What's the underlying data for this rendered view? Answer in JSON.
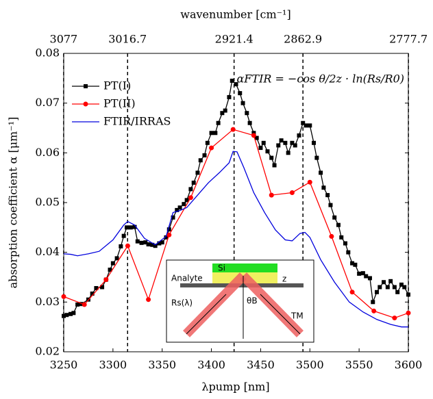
{
  "chart_data": {
    "type": "line",
    "x2_label": "wavenumber [cm⁻¹]",
    "ylabel": "absorption coefficient α [μm⁻¹]",
    "xlabel": "λpump [nm]",
    "annotation": "αFTIR = −cos θ/2z · ln(Rs/R0)",
    "inset_labels": [
      "Si",
      "Analyte",
      "z",
      "Rs(λ)",
      "θB",
      "TM"
    ],
    "xlim": [
      3250,
      3600
    ],
    "xticks": [
      3250,
      3300,
      3350,
      3400,
      3450,
      3500,
      3550,
      3600
    ],
    "ylim": [
      0.02,
      0.08
    ],
    "yticks": [
      0.02,
      0.03,
      0.04,
      0.05,
      0.06,
      0.07,
      0.08
    ],
    "x2ticks": [
      3077,
      3016.7,
      2921.4,
      2862.9,
      2777.7
    ],
    "legend": "upper left",
    "series": [
      {
        "name": "PT(I)",
        "color": "#000000",
        "marker": "square",
        "x": [
          3250,
          3253,
          3257,
          3260,
          3264,
          3268,
          3275,
          3279,
          3283,
          3289,
          3293,
          3297,
          3300,
          3304,
          3308,
          3311,
          3314,
          3318,
          3322,
          3325,
          3329,
          3333,
          3336,
          3340,
          3343,
          3347,
          3350,
          3354,
          3357,
          3361,
          3365,
          3368,
          3372,
          3375,
          3379,
          3382,
          3386,
          3389,
          3393,
          3396,
          3400,
          3404,
          3407,
          3411,
          3414,
          3418,
          3421,
          3425,
          3429,
          3432,
          3436,
          3439,
          3443,
          3446,
          3450,
          3453,
          3457,
          3461,
          3464,
          3468,
          3471,
          3475,
          3478,
          3482,
          3485,
          3489,
          3493,
          3496,
          3500,
          3504,
          3507,
          3511,
          3514,
          3518,
          3521,
          3525,
          3529,
          3532,
          3536,
          3539,
          3543,
          3546,
          3550,
          3554,
          3557,
          3561,
          3564,
          3568,
          3571,
          3575,
          3579,
          3582,
          3586,
          3589,
          3593,
          3596,
          3600
        ],
        "values": [
          0.0272,
          0.0274,
          0.0276,
          0.0278,
          0.0295,
          0.0296,
          0.0305,
          0.0317,
          0.0328,
          0.033,
          0.0345,
          0.0365,
          0.0378,
          0.0388,
          0.0412,
          0.0433,
          0.045,
          0.045,
          0.0451,
          0.0422,
          0.0419,
          0.042,
          0.0416,
          0.0415,
          0.0413,
          0.0418,
          0.042,
          0.043,
          0.0446,
          0.047,
          0.0485,
          0.049,
          0.0497,
          0.0505,
          0.0527,
          0.054,
          0.056,
          0.0585,
          0.0595,
          0.062,
          0.064,
          0.064,
          0.066,
          0.068,
          0.0685,
          0.0712,
          0.0745,
          0.0738,
          0.072,
          0.07,
          0.068,
          0.066,
          0.064,
          0.063,
          0.061,
          0.062,
          0.0603,
          0.059,
          0.0575,
          0.0615,
          0.0625,
          0.062,
          0.06,
          0.062,
          0.0615,
          0.0635,
          0.066,
          0.0655,
          0.0655,
          0.062,
          0.059,
          0.056,
          0.053,
          0.0515,
          0.0495,
          0.047,
          0.0455,
          0.043,
          0.0418,
          0.04,
          0.0378,
          0.0375,
          0.0357,
          0.0358,
          0.0352,
          0.0348,
          0.03,
          0.032,
          0.033,
          0.034,
          0.033,
          0.0342,
          0.033,
          0.032,
          0.0335,
          0.033,
          0.0315
        ]
      },
      {
        "name": "PT(II)",
        "color": "#ff0000",
        "marker": "circle",
        "x": [
          3250,
          3271,
          3293,
          3315,
          3336,
          3357,
          3379,
          3400,
          3422,
          3443,
          3461,
          3482,
          3500,
          3522,
          3543,
          3565,
          3586,
          3600
        ],
        "values": [
          0.0311,
          0.0295,
          0.0345,
          0.0413,
          0.0305,
          0.0435,
          0.051,
          0.061,
          0.0647,
          0.0635,
          0.0515,
          0.052,
          0.0541,
          0.0432,
          0.032,
          0.0282,
          0.0268,
          0.0278
        ]
      },
      {
        "name": "FTIR/IRRAS",
        "color": "#0000dd",
        "marker": "none",
        "x": [
          3250,
          3257,
          3264,
          3275,
          3286,
          3300,
          3311,
          3315,
          3322,
          3332,
          3343,
          3354,
          3361,
          3368,
          3375,
          3386,
          3397,
          3408,
          3418,
          3422,
          3426,
          3433,
          3443,
          3454,
          3465,
          3475,
          3482,
          3490,
          3495,
          3500,
          3511,
          3525,
          3540,
          3554,
          3568,
          3582,
          3593,
          3600
        ],
        "values": [
          0.0397,
          0.0396,
          0.0393,
          0.0397,
          0.0402,
          0.0425,
          0.0455,
          0.0462,
          0.0455,
          0.0428,
          0.0415,
          0.0432,
          0.048,
          0.0484,
          0.049,
          0.0515,
          0.054,
          0.056,
          0.058,
          0.0603,
          0.0602,
          0.057,
          0.052,
          0.048,
          0.0445,
          0.0425,
          0.0423,
          0.0438,
          0.044,
          0.043,
          0.0385,
          0.034,
          0.03,
          0.028,
          0.0265,
          0.0255,
          0.025,
          0.025
        ]
      }
    ]
  }
}
